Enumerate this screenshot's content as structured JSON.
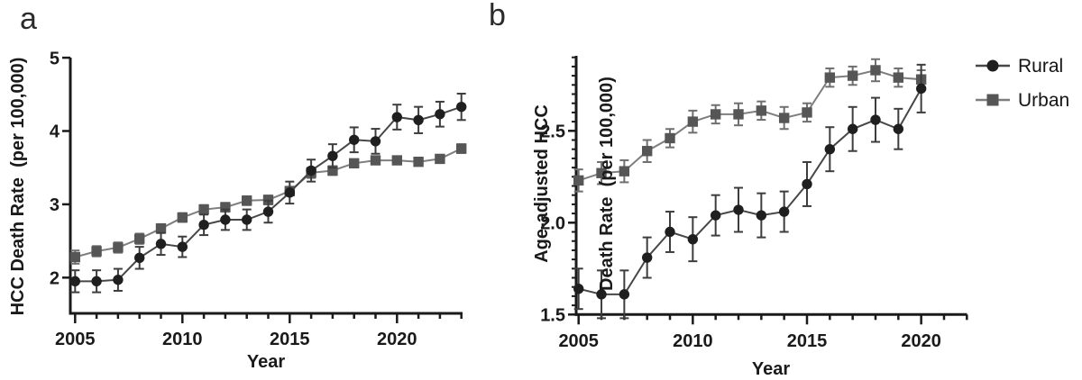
{
  "figure": {
    "panels": {
      "a": {
        "letter": "a",
        "ylabel": "HCC Death Rate  (per 100,000)",
        "xlabel": "Year"
      },
      "b": {
        "letter": "b",
        "ylabel_line1": "Age-adjusted HCC",
        "ylabel_line2": "Death Rate  (per 100,000)",
        "xlabel": "Year"
      }
    },
    "legend": {
      "items": [
        {
          "label": "Rural",
          "marker": "circle",
          "marker_color": "#1f1f1f",
          "line_color": "#474747"
        },
        {
          "label": "Urban",
          "marker": "square",
          "marker_color": "#565656",
          "line_color": "#7e7e7e"
        }
      ]
    },
    "colors": {
      "axis": "#1a1a1a",
      "text": "#1a1a1a",
      "background": "#ffffff"
    }
  },
  "chart_data": [
    {
      "panel": "a",
      "type": "line",
      "title": "",
      "xlabel": "Year",
      "ylabel": "HCC Death Rate (per 100,000)",
      "x": [
        2005,
        2006,
        2007,
        2008,
        2009,
        2010,
        2011,
        2012,
        2013,
        2014,
        2015,
        2016,
        2017,
        2018,
        2019,
        2020,
        2021,
        2022,
        2023
      ],
      "series": [
        {
          "name": "Rural",
          "marker": "circle",
          "marker_color": "#1f1f1f",
          "line_color": "#474747",
          "error_color": "#3d3d3d",
          "values": [
            1.95,
            1.95,
            1.97,
            2.27,
            2.46,
            2.42,
            2.72,
            2.79,
            2.79,
            2.9,
            3.16,
            3.46,
            3.66,
            3.88,
            3.86,
            4.19,
            4.15,
            4.23,
            4.33
          ],
          "errors": [
            0.15,
            0.15,
            0.15,
            0.15,
            0.15,
            0.14,
            0.14,
            0.14,
            0.14,
            0.15,
            0.15,
            0.15,
            0.16,
            0.17,
            0.17,
            0.17,
            0.18,
            0.17,
            0.18
          ]
        },
        {
          "name": "Urban",
          "marker": "square",
          "marker_color": "#565656",
          "line_color": "#7e7e7e",
          "error_color": "#6f6f6f",
          "values": [
            2.28,
            2.36,
            2.41,
            2.53,
            2.67,
            2.82,
            2.93,
            2.96,
            3.05,
            3.06,
            3.18,
            3.43,
            3.46,
            3.56,
            3.6,
            3.6,
            3.58,
            3.62,
            3.76
          ],
          "errors": [
            0.09,
            0.07,
            0.07,
            0.07,
            0.06,
            0.06,
            0.06,
            0.06,
            0.06,
            0.06,
            0.06,
            0.07,
            0.06,
            0.05,
            0.05,
            0.05,
            0.05,
            0.05,
            0.06
          ]
        }
      ],
      "ylim": [
        1.5,
        5.0
      ],
      "xlim": [
        2004.8,
        2023.1
      ],
      "yticks": [
        2,
        3,
        4,
        5
      ],
      "ytick_labels": [
        "2",
        "3",
        "4",
        "5"
      ],
      "y_minor_step": null,
      "y_minor_max": null,
      "xaxis_year_start": 2005,
      "xaxis_year_end": 2023,
      "xticks_labeled": [
        2005,
        2010,
        2015,
        2020
      ],
      "xtick_labels": [
        "2005",
        "2010",
        "2015",
        "2020"
      ],
      "grid": false,
      "legend_position": "outside-top-right"
    },
    {
      "panel": "b",
      "type": "line",
      "title": "",
      "xlabel": "Year",
      "ylabel": "Age-adjusted HCC Death Rate (per 100,000)",
      "x": [
        2005,
        2006,
        2007,
        2008,
        2009,
        2010,
        2011,
        2012,
        2013,
        2014,
        2015,
        2016,
        2017,
        2018,
        2019,
        2020
      ],
      "series": [
        {
          "name": "Rural",
          "marker": "circle",
          "marker_color": "#1f1f1f",
          "line_color": "#474747",
          "error_color": "#3d3d3d",
          "values": [
            1.64,
            1.61,
            1.61,
            1.81,
            1.95,
            1.91,
            2.04,
            2.07,
            2.04,
            2.06,
            2.21,
            2.4,
            2.51,
            2.56,
            2.51,
            2.73
          ],
          "errors": [
            0.11,
            0.13,
            0.13,
            0.11,
            0.11,
            0.12,
            0.11,
            0.12,
            0.12,
            0.11,
            0.12,
            0.12,
            0.12,
            0.12,
            0.11,
            0.13
          ]
        },
        {
          "name": "Urban",
          "marker": "square",
          "marker_color": "#565656",
          "line_color": "#7e7e7e",
          "error_color": "#6f6f6f",
          "values": [
            2.23,
            2.27,
            2.28,
            2.39,
            2.46,
            2.55,
            2.59,
            2.59,
            2.61,
            2.57,
            2.6,
            2.79,
            2.8,
            2.83,
            2.79,
            2.78
          ],
          "errors": [
            0.06,
            0.06,
            0.06,
            0.06,
            0.05,
            0.06,
            0.05,
            0.06,
            0.05,
            0.06,
            0.05,
            0.05,
            0.05,
            0.06,
            0.05,
            0.05
          ]
        }
      ],
      "ylim": [
        1.5,
        2.91
      ],
      "xlim": [
        2004.9,
        2022.0
      ],
      "yticks": [
        1.5,
        2.0,
        2.5
      ],
      "ytick_labels": [
        "1.5",
        "2.0",
        "2.5"
      ],
      "y_minor_step": 0.05,
      "y_minor_max": 2.9,
      "xaxis_year_start": 2005,
      "xaxis_year_end": 2022,
      "xticks_labeled": [
        2005,
        2010,
        2015,
        2020
      ],
      "xtick_labels": [
        "2005",
        "2010",
        "2015",
        "2020"
      ],
      "grid": false,
      "legend_position": "outside-top-right"
    }
  ]
}
